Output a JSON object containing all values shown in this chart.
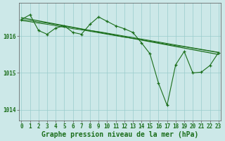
{
  "background_color": "#cce8e8",
  "plot_bg_color": "#cce8e8",
  "grid_color": "#99cccc",
  "line_color": "#1a6e1a",
  "xlabel": "Graphe pression niveau de la mer (hPa)",
  "xlabel_fontsize": 7.0,
  "ylim": [
    1013.7,
    1016.9
  ],
  "xlim": [
    -0.3,
    23.3
  ],
  "yticks": [
    1014,
    1015,
    1016
  ],
  "xticks": [
    0,
    1,
    2,
    3,
    4,
    5,
    6,
    7,
    8,
    9,
    10,
    11,
    12,
    13,
    14,
    15,
    16,
    17,
    18,
    19,
    20,
    21,
    22,
    23
  ],
  "trend_x": [
    0,
    23
  ],
  "trend_y": [
    1016.5,
    1015.5
  ],
  "smooth1_x": [
    0,
    1,
    2,
    3,
    4,
    5,
    6,
    7,
    8,
    9,
    10,
    11,
    12,
    13,
    14,
    15,
    16,
    17,
    18,
    19,
    20,
    21,
    22,
    23
  ],
  "smooth1_y": [
    1016.45,
    1016.42,
    1016.38,
    1016.35,
    1016.31,
    1016.27,
    1016.23,
    1016.19,
    1016.15,
    1016.12,
    1016.08,
    1016.04,
    1016.0,
    1015.96,
    1015.92,
    1015.88,
    1015.84,
    1015.8,
    1015.76,
    1015.72,
    1015.68,
    1015.64,
    1015.6,
    1015.56
  ],
  "smooth2_x": [
    0,
    1,
    2,
    3,
    4,
    5,
    6,
    7,
    8,
    9,
    10,
    11,
    12,
    13,
    14,
    15,
    16,
    17,
    18,
    19,
    20,
    21,
    22,
    23
  ],
  "smooth2_y": [
    1016.42,
    1016.39,
    1016.35,
    1016.32,
    1016.28,
    1016.24,
    1016.2,
    1016.17,
    1016.13,
    1016.09,
    1016.05,
    1016.01,
    1015.97,
    1015.94,
    1015.9,
    1015.86,
    1015.82,
    1015.78,
    1015.74,
    1015.71,
    1015.67,
    1015.63,
    1015.59,
    1015.55
  ],
  "jagged_x": [
    0,
    1,
    2,
    3,
    4,
    5,
    6,
    7,
    8,
    9,
    10,
    11,
    12,
    13,
    14,
    15,
    16,
    17,
    18,
    19,
    20,
    21,
    22,
    23
  ],
  "jagged_y": [
    1016.45,
    1016.58,
    1016.15,
    1016.05,
    1016.22,
    1016.28,
    1016.1,
    1016.05,
    1016.32,
    1016.52,
    1016.4,
    1016.28,
    1016.2,
    1016.1,
    1015.82,
    1015.52,
    1014.72,
    1014.12,
    1015.22,
    1015.58,
    1015.0,
    1015.02,
    1015.2,
    1015.55
  ],
  "tick_fontsize": 5.5,
  "tick_color": "#1a6e1a",
  "axis_color": "#555555"
}
